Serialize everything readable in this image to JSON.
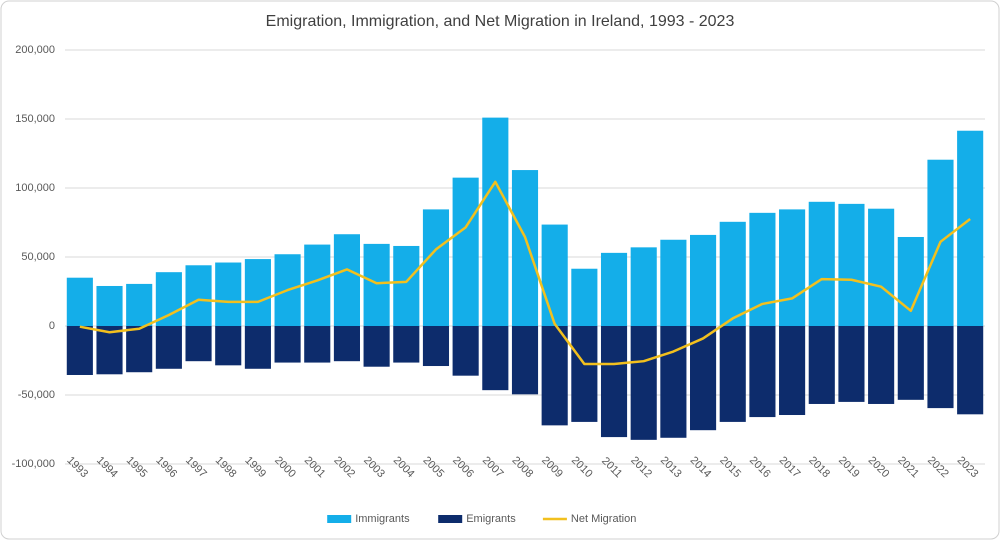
{
  "chart_data": {
    "type": "bar",
    "title": "Emigration, Immigration, and Net Migration in Ireland, 1993 - 2023",
    "categories": [
      "1993",
      "1994",
      "1995",
      "1996",
      "1997",
      "1998",
      "1999",
      "2000",
      "2001",
      "2002",
      "2003",
      "2004",
      "2005",
      "2006",
      "2007",
      "2008",
      "2009",
      "2010",
      "2011",
      "2012",
      "2013",
      "2014",
      "2015",
      "2016",
      "2017",
      "2018",
      "2019",
      "2020",
      "2021",
      "2022",
      "2023"
    ],
    "series": [
      {
        "name": "Immigrants",
        "color": "#14aee9",
        "type": "bar",
        "values": [
          35000,
          29000,
          30500,
          39000,
          44000,
          46000,
          48500,
          52000,
          59000,
          66500,
          59500,
          58000,
          84500,
          107500,
          151000,
          113000,
          73500,
          41500,
          53000,
          57000,
          62500,
          66000,
          75500,
          82000,
          84500,
          90000,
          88500,
          85000,
          64500,
          120500,
          141500
        ]
      },
      {
        "name": "Emigrants",
        "color": "#0d2c6c",
        "type": "bar",
        "values": [
          -35500,
          -35000,
          -33500,
          -31000,
          -25500,
          -28500,
          -31000,
          -26500,
          -26500,
          -25500,
          -29500,
          -26500,
          -29000,
          -36000,
          -46500,
          -49500,
          -72000,
          -69500,
          -80500,
          -82500,
          -81000,
          -75500,
          -69500,
          -66000,
          -64500,
          -56500,
          -55000,
          -56500,
          -53500,
          -59500,
          -64000
        ]
      },
      {
        "name": "Net Migration",
        "color": "#f2c01e",
        "type": "line",
        "values": [
          -500,
          -4500,
          -2000,
          8000,
          19000,
          17500,
          17500,
          26000,
          33000,
          41000,
          31000,
          32000,
          55500,
          71500,
          104500,
          64500,
          1500,
          -27500,
          -27500,
          -25500,
          -18500,
          -9000,
          5500,
          16000,
          20000,
          34000,
          33500,
          28500,
          11000,
          61000,
          77500
        ]
      }
    ],
    "ylim": [
      -100000,
      200000
    ],
    "yticks": [
      {
        "value": -100000,
        "label": "-100,000"
      },
      {
        "value": -50000,
        "label": "-50,000"
      },
      0,
      {
        "value": 50000,
        "label": "50,000"
      },
      {
        "value": 100000,
        "label": "100,000"
      },
      {
        "value": 150000,
        "label": "150,000"
      },
      {
        "value": 200000,
        "label": "200,000"
      }
    ],
    "grid": true,
    "legend": "bottom"
  }
}
